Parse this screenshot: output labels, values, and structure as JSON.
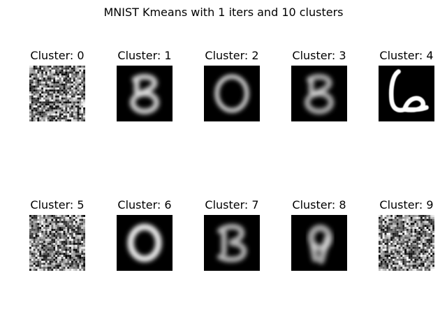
{
  "figure": {
    "title": "MNIST Kmeans with 1 iters and 10 clusters"
  },
  "chart_data": {
    "type": "image-grid",
    "title": "MNIST Kmeans with 1 iters and 10 clusters",
    "iterations": 1,
    "n_clusters": 10,
    "rows": 2,
    "cols": 5,
    "panels": [
      {
        "label": "Cluster: 0",
        "cluster": 0,
        "content": "random-noise"
      },
      {
        "label": "Cluster: 1",
        "cluster": 1,
        "content": "blurred-digit-8"
      },
      {
        "label": "Cluster: 2",
        "cluster": 2,
        "content": "blurred-digit-0"
      },
      {
        "label": "Cluster: 3",
        "cluster": 3,
        "content": "blurred-digit-8"
      },
      {
        "label": "Cluster: 4",
        "cluster": 4,
        "content": "sharp-digit-6"
      },
      {
        "label": "Cluster: 5",
        "cluster": 5,
        "content": "random-noise"
      },
      {
        "label": "Cluster: 6",
        "cluster": 6,
        "content": "blurred-digit-0"
      },
      {
        "label": "Cluster: 7",
        "cluster": 7,
        "content": "blurred-digit-3"
      },
      {
        "label": "Cluster: 8",
        "cluster": 8,
        "content": "blurred-digit-9"
      },
      {
        "label": "Cluster: 9",
        "cluster": 9,
        "content": "random-noise"
      }
    ]
  }
}
